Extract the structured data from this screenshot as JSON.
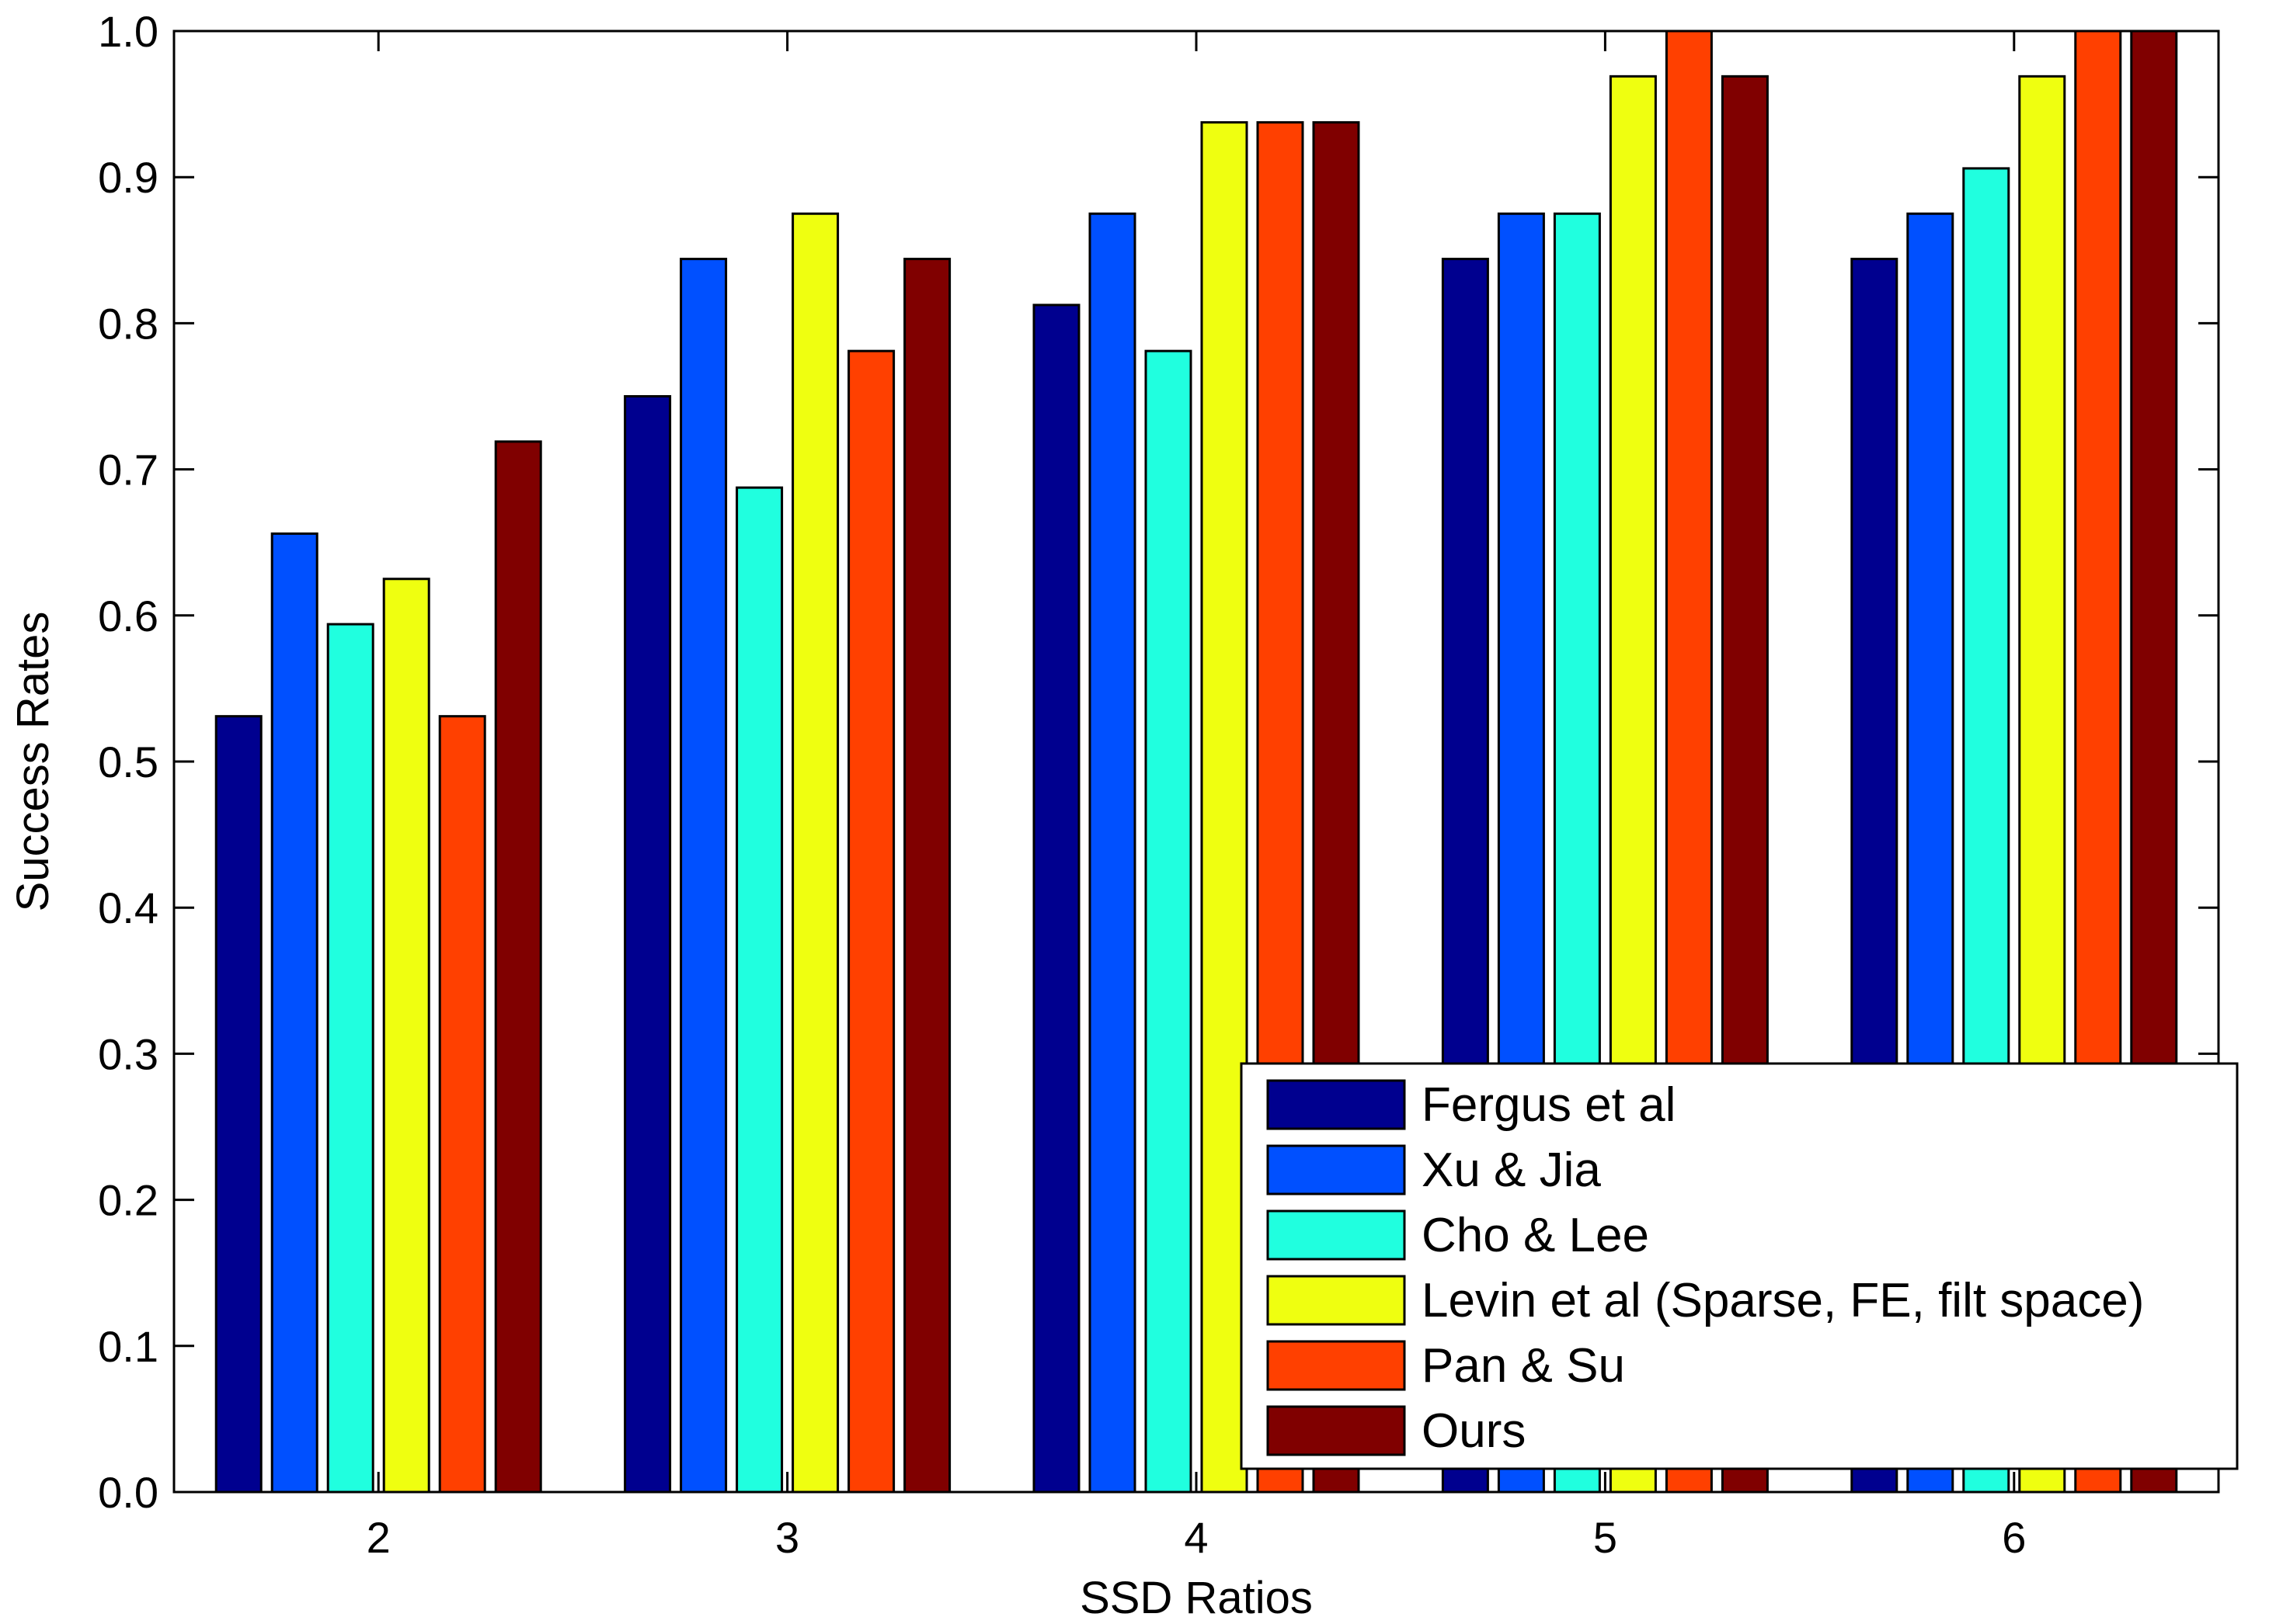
{
  "chart_data": {
    "type": "bar",
    "title": "",
    "xlabel": "SSD Ratios",
    "ylabel": "Success Rates",
    "ylim": [
      0,
      1
    ],
    "yticks": [
      "0.0",
      "0.1",
      "0.2",
      "0.3",
      "0.4",
      "0.5",
      "0.6",
      "0.7",
      "0.8",
      "0.9",
      "1.0"
    ],
    "categories": [
      "2",
      "3",
      "4",
      "5",
      "6"
    ],
    "grid": false,
    "legend_position": "bottom-right",
    "series": [
      {
        "name": "Fergus et al",
        "color": "#00008f",
        "values": [
          0.531,
          0.75,
          0.8125,
          0.844,
          0.844
        ]
      },
      {
        "name": "Xu & Jia",
        "color": "#0050ff",
        "values": [
          0.656,
          0.844,
          0.875,
          0.875,
          0.875
        ]
      },
      {
        "name": "Cho & Lee",
        "color": "#20ffdf",
        "values": [
          0.594,
          0.6875,
          0.781,
          0.875,
          0.906
        ]
      },
      {
        "name": "Levin et al (Sparse, FE, filt space)",
        "color": "#efff10",
        "values": [
          0.625,
          0.875,
          0.9375,
          0.969,
          0.969
        ]
      },
      {
        "name": "Pan & Su",
        "color": "#ff4000",
        "values": [
          0.531,
          0.781,
          0.9375,
          1.0,
          1.0
        ]
      },
      {
        "name": "Ours",
        "color": "#800000",
        "values": [
          0.719,
          0.844,
          0.9375,
          0.969,
          1.0
        ]
      }
    ]
  }
}
